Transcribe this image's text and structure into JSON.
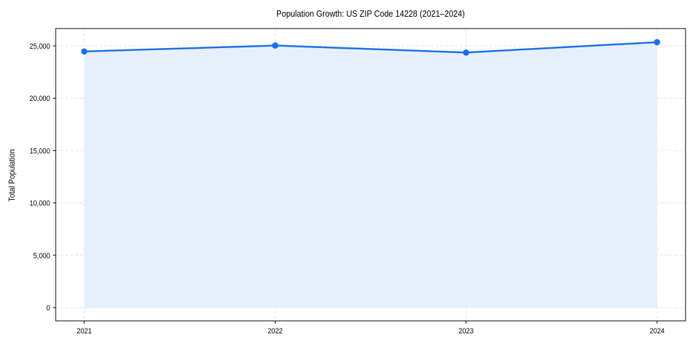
{
  "chart_data": {
    "type": "area",
    "title": "Population Growth: US ZIP Code 14228 (2021–2024)",
    "xlabel": "",
    "ylabel": "Total Population",
    "categories": [
      "2021",
      "2022",
      "2023",
      "2024"
    ],
    "series": [
      {
        "name": "Total Population",
        "values": [
          24470,
          25040,
          24370,
          25360
        ]
      }
    ],
    "ylim": [
      -1300,
      26700
    ],
    "yticks": [
      0,
      5000,
      10000,
      15000,
      20000,
      25000
    ],
    "ytick_labels": [
      "0",
      "5,000",
      "10,000",
      "15,000",
      "20,000",
      "25,000"
    ],
    "grid": true,
    "legend": null,
    "colors": {
      "line": "#1a6fe6",
      "fill": "#e3eefd",
      "grid": "#dddddd"
    }
  }
}
